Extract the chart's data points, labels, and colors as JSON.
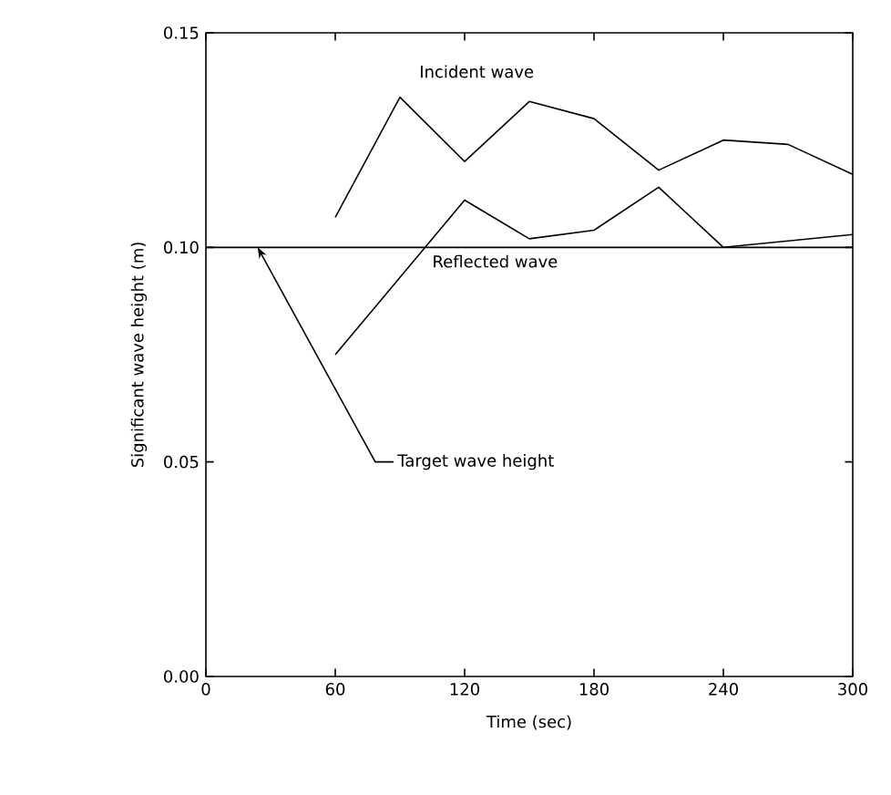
{
  "chart_data": {
    "type": "line",
    "xlabel": "Time (sec)",
    "ylabel": "Significant wave height (m)",
    "xlim": [
      0,
      300
    ],
    "xticks": [
      0,
      60,
      120,
      180,
      240,
      300
    ],
    "ylim": [
      0,
      0.15
    ],
    "yticks": [
      {
        "value": 0,
        "label": "0.00"
      },
      {
        "value": 0.05,
        "label": "0.05"
      },
      {
        "value": 0.1,
        "label": "0.10"
      },
      {
        "value": 0.15,
        "label": "0.15"
      }
    ],
    "series": [
      {
        "name": "Incident wave",
        "color": "#000000",
        "x": [
          60,
          90,
          120,
          150,
          180,
          210,
          240,
          270,
          300
        ],
        "values": [
          0.107,
          0.135,
          0.12,
          0.134,
          0.13,
          0.118,
          0.125,
          0.124,
          0.117
        ]
      },
      {
        "name": "Reflected wave",
        "color": "#000000",
        "x": [
          60,
          120,
          150,
          180,
          210,
          240,
          300
        ],
        "values": [
          0.075,
          0.111,
          0.102,
          0.104,
          0.114,
          0.1,
          0.103
        ]
      }
    ],
    "ref_lines": [
      {
        "axis": "y",
        "value": 0.1,
        "label": "Target wave height",
        "color": "#000000",
        "line_style": "solid"
      }
    ],
    "legend": false,
    "grid": false,
    "marker": "none",
    "line_style": "solid"
  }
}
